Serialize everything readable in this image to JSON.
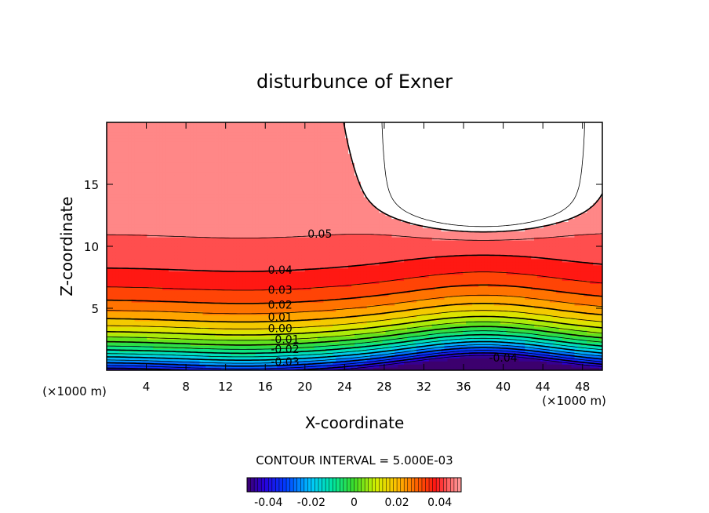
{
  "chart_data": {
    "type": "contour",
    "title": "disturbunce of Exner",
    "xlabel": "X-coordinate",
    "ylabel": "Z-coordinate",
    "x_unit": "(×1000 m)",
    "y_unit": "(×1000 m)",
    "xlim": [
      0,
      50
    ],
    "ylim": [
      0,
      20
    ],
    "x_ticks": [
      4,
      8,
      12,
      16,
      20,
      24,
      28,
      32,
      36,
      40,
      44,
      48
    ],
    "x_tick_labels": [
      "4",
      "8",
      "12",
      "16",
      "20",
      "24",
      "28",
      "32",
      "36",
      "40",
      "44",
      "48"
    ],
    "y_ticks": [
      5,
      10,
      15
    ],
    "y_tick_labels": [
      "5",
      "10",
      "15"
    ],
    "contour_interval_text": "CONTOUR INTERVAL = 5.000E-03",
    "contour_interval": 0.005,
    "value_range": [
      -0.045,
      0.055
    ],
    "contour_labels": [
      {
        "text": "0.05",
        "x": 21.5,
        "z": 11.0
      },
      {
        "text": "0.04",
        "x": 17.5,
        "z": 8.1
      },
      {
        "text": "0.03",
        "x": 17.5,
        "z": 6.5
      },
      {
        "text": "0.02",
        "x": 17.5,
        "z": 5.3
      },
      {
        "text": "0.01",
        "x": 17.5,
        "z": 4.3
      },
      {
        "text": "0.00",
        "x": 17.5,
        "z": 3.4
      },
      {
        "text": "-0.01",
        "x": 18.0,
        "z": 2.5
      },
      {
        "text": "-0.02",
        "x": 18.0,
        "z": 1.7
      },
      {
        "text": "-0.03",
        "x": 18.0,
        "z": 0.7
      },
      {
        "text": "-0.04",
        "x": 40.0,
        "z": 1.0
      }
    ],
    "colorbar": {
      "range": [
        -0.05,
        0.05
      ],
      "ticks": [
        -0.04,
        -0.02,
        0,
        0.02,
        0.04
      ],
      "tick_labels": [
        "-0.04",
        "-0.02",
        "0",
        "0.02",
        "0.04"
      ]
    }
  }
}
